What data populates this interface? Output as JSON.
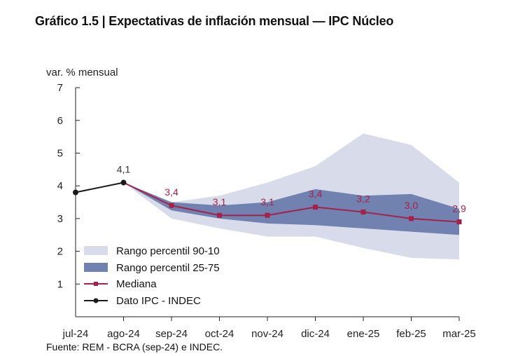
{
  "page": {
    "title": "Gráfico 1.5 | Expectativas de inflación mensual — IPC Núcleo",
    "source": "Fuente: REM - BCRA (sep-24) e INDEC."
  },
  "chart_data": {
    "type": "line",
    "ylabel": "var. % mensual",
    "xlabel": "",
    "ylim": [
      0,
      7
    ],
    "yticks": [
      "1",
      "2",
      "3",
      "4",
      "5",
      "6",
      "7"
    ],
    "categories": [
      "jul-24",
      "ago-24",
      "sep-24",
      "oct-24",
      "nov-24",
      "dic-24",
      "ene-25",
      "feb-25",
      "mar-25"
    ],
    "grid": false,
    "legend_position": "bottom-left",
    "series": [
      {
        "name": "Rango percentil 90-10",
        "kind": "band",
        "color": "#d7dbea",
        "x": [
          "ago-24",
          "sep-24",
          "oct-24",
          "nov-24",
          "dic-24",
          "ene-25",
          "feb-25",
          "mar-25"
        ],
        "low": [
          4.1,
          3.0,
          2.7,
          2.45,
          2.45,
          2.1,
          1.8,
          1.75
        ],
        "high": [
          4.1,
          3.5,
          3.7,
          4.1,
          4.6,
          5.6,
          5.25,
          4.1
        ]
      },
      {
        "name": "Rango percentil 25-75",
        "kind": "band",
        "color": "#7181b0",
        "x": [
          "ago-24",
          "sep-24",
          "oct-24",
          "nov-24",
          "dic-24",
          "ene-25",
          "feb-25",
          "mar-25"
        ],
        "low": [
          4.1,
          3.25,
          3.0,
          2.85,
          2.8,
          2.7,
          2.6,
          2.5
        ],
        "high": [
          4.1,
          3.5,
          3.4,
          3.5,
          3.9,
          3.7,
          3.75,
          3.3
        ]
      },
      {
        "name": "Mediana",
        "kind": "line",
        "color": "#a3224a",
        "x": [
          "ago-24",
          "sep-24",
          "oct-24",
          "nov-24",
          "dic-24",
          "ene-25",
          "feb-25",
          "mar-25"
        ],
        "values": [
          4.1,
          3.4,
          3.1,
          3.1,
          3.35,
          3.2,
          3.0,
          2.9
        ],
        "labels": [
          "",
          "3,4",
          "3,1",
          "3,1",
          "3,4",
          "3,2",
          "3,0",
          "2,9"
        ]
      },
      {
        "name": "Dato IPC - INDEC",
        "kind": "line",
        "color": "#1a1a1a",
        "x": [
          "jul-24",
          "ago-24"
        ],
        "values": [
          3.8,
          4.1
        ],
        "labels": [
          "",
          "4,1"
        ]
      }
    ]
  }
}
